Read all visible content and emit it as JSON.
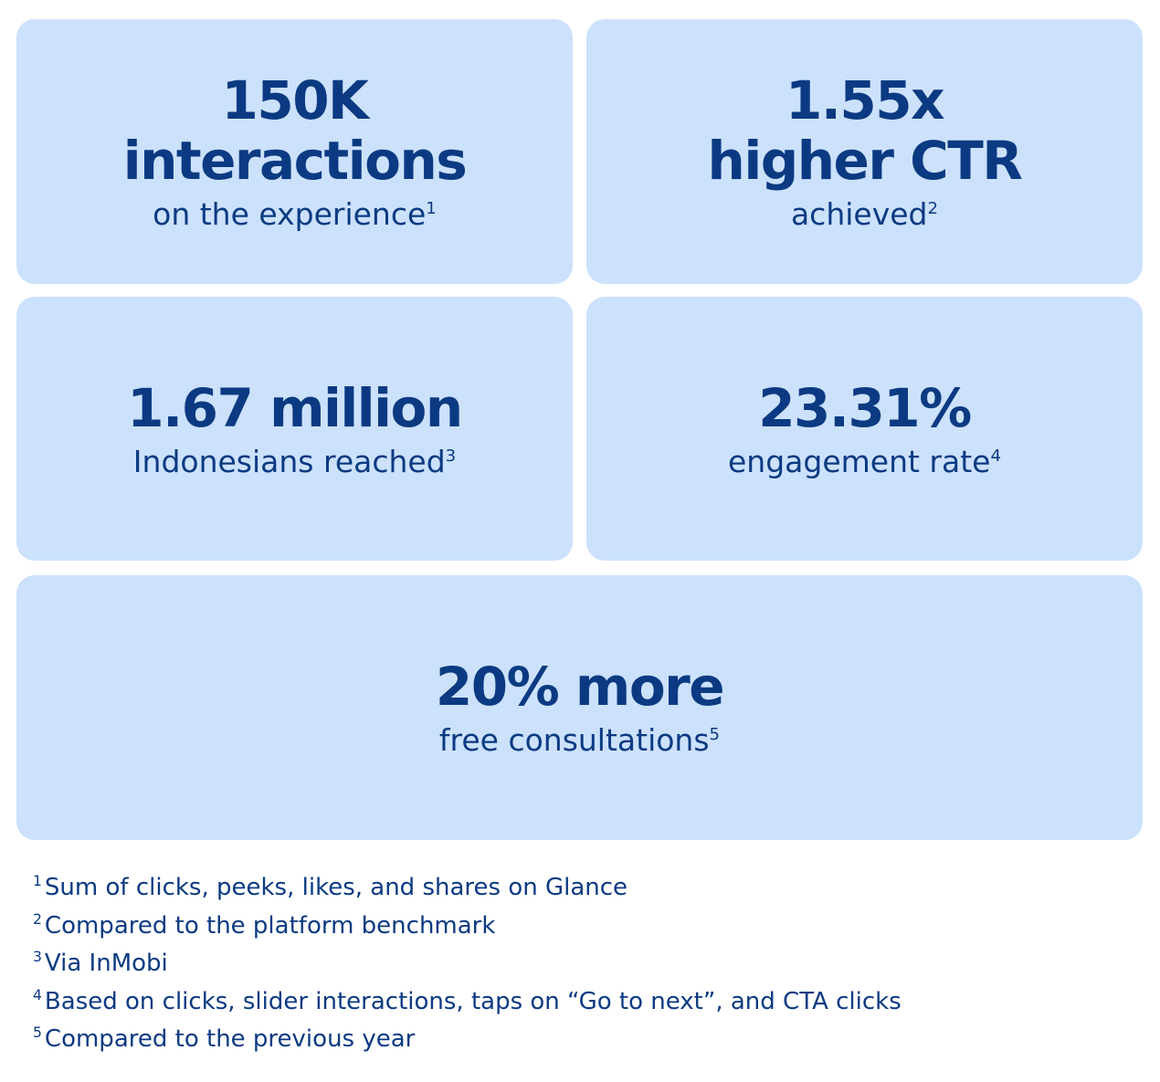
{
  "cards": [
    {
      "headline_lines": [
        "150K",
        "interactions"
      ],
      "subline": "on the experience",
      "marker": "1"
    },
    {
      "headline_lines": [
        "1.55x",
        "higher CTR"
      ],
      "subline": "achieved",
      "marker": "2"
    },
    {
      "headline_lines": [
        "1.67 million"
      ],
      "subline": "Indonesians reached",
      "marker": "3"
    },
    {
      "headline_lines": [
        "23.31%"
      ],
      "subline": "engagement rate",
      "marker": "4"
    },
    {
      "headline_lines": [
        "20% more"
      ],
      "subline": "free consultations",
      "marker": "5"
    }
  ],
  "footnotes": [
    {
      "marker": "1",
      "text": "Sum of clicks, peeks, likes, and shares on Glance"
    },
    {
      "marker": "2",
      "text": "Compared to the platform benchmark"
    },
    {
      "marker": "3",
      "text": "Via InMobi"
    },
    {
      "marker": "4",
      "text": "Based on clicks, slider interactions, taps on “Go to next”, and CTA clicks"
    },
    {
      "marker": "5",
      "text": "Compared to the previous year"
    }
  ],
  "colors": {
    "card_background": "#cce1fc",
    "text": "#0b3a82"
  }
}
